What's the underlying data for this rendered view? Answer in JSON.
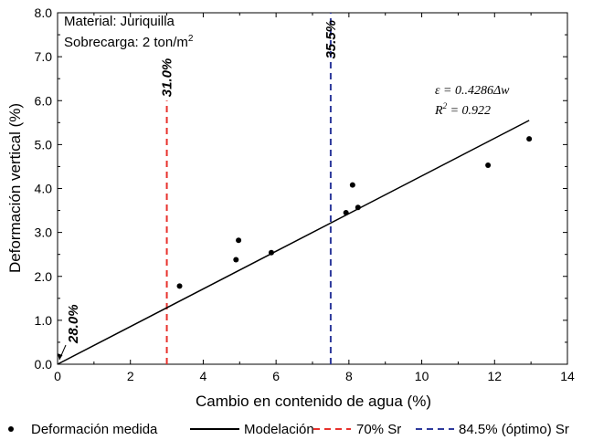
{
  "chart_data": {
    "type": "scatter",
    "xlabel": "Cambio en contenido de agua (%)",
    "ylabel": "Deformación vertical (%)",
    "xlim": [
      0,
      14
    ],
    "ylim": [
      0,
      8
    ],
    "xticks": [
      "0",
      "2",
      "4",
      "6",
      "8",
      "10",
      "12",
      "14"
    ],
    "yticks": [
      "0.0",
      "1.0",
      "2.0",
      "3.0",
      "4.0",
      "5.0",
      "6.0",
      "7.0",
      "8.0"
    ],
    "info": {
      "material": "Material: Juriquilla",
      "load_prefix": "Sobrecarga: 2 ton/m",
      "load_sup": "2"
    },
    "series": [
      {
        "name": "Deformación medida",
        "kind": "points",
        "points": [
          [
            3.35,
            1.78
          ],
          [
            4.9,
            2.38
          ],
          [
            4.97,
            2.82
          ],
          [
            5.87,
            2.54
          ],
          [
            7.92,
            3.45
          ],
          [
            8.1,
            4.08
          ],
          [
            8.25,
            3.57
          ],
          [
            11.82,
            4.53
          ],
          [
            12.95,
            5.13
          ]
        ]
      },
      {
        "name": "Modelación",
        "kind": "line",
        "slope": 0.4286,
        "x_range": [
          0,
          12.95
        ]
      },
      {
        "name": "70% Sr",
        "kind": "vline",
        "x": 3,
        "y_range": [
          0,
          6.0
        ],
        "color": "#e8312c",
        "label": "31.0%"
      },
      {
        "name": "84.5% (óptimo) Sr",
        "kind": "vline",
        "x": 7.5,
        "y_range": [
          0,
          8.0
        ],
        "color": "#2e3a9c",
        "label": "35.5%"
      }
    ],
    "annotations": {
      "origin_label": "28.0%",
      "origin_point": [
        0,
        0
      ],
      "equation_left": "ε = 0..4286Δw",
      "r2_prefix": "R",
      "r2_sup": "2",
      "r2_value": " = 0.922"
    },
    "legend": {
      "placement": "bottom",
      "items": [
        "Deformación medida",
        "Modelación",
        "70% Sr",
        "84.5% (óptimo) Sr"
      ]
    }
  }
}
